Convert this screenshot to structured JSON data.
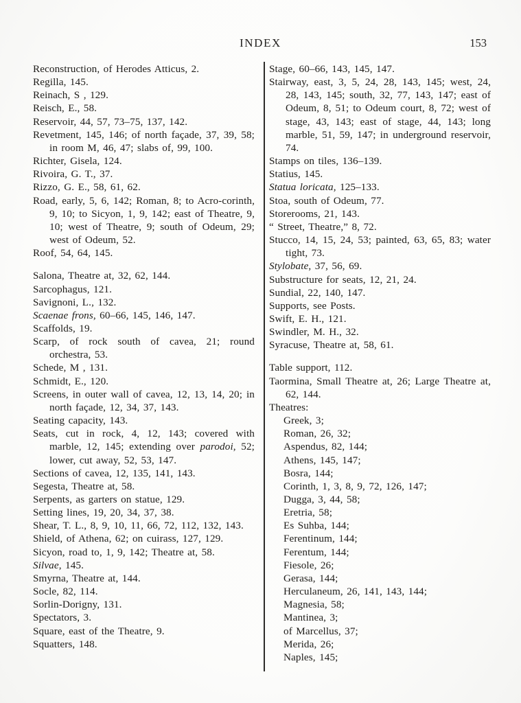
{
  "header": {
    "title": "INDEX",
    "page_number": "153"
  },
  "colors": {
    "paper": "#fbfbf9",
    "ink": "#1e1c19",
    "rule": "#2b2a28"
  },
  "columns": {
    "left": [
      {
        "type": "entry",
        "runs": [
          {
            "t": "Reconstruction, of Herodes Atticus, 2."
          }
        ]
      },
      {
        "type": "entry",
        "runs": [
          {
            "t": "Regilla, 145."
          }
        ]
      },
      {
        "type": "entry",
        "runs": [
          {
            "t": "Reinach, S , 129."
          }
        ]
      },
      {
        "type": "entry",
        "runs": [
          {
            "t": "Reisch, E., 58."
          }
        ]
      },
      {
        "type": "entry",
        "runs": [
          {
            "t": "Reservoir, 44, 57, 73–75, 137, 142."
          }
        ]
      },
      {
        "type": "entry",
        "runs": [
          {
            "t": "Revetment, 145, 146; of north façade, 37, 39, 58; in room M, 46, 47; slabs of, 99, 100."
          }
        ]
      },
      {
        "type": "entry",
        "runs": [
          {
            "t": "Richter, Gisela, 124."
          }
        ]
      },
      {
        "type": "entry",
        "runs": [
          {
            "t": "Rivoira, G. T., 37."
          }
        ]
      },
      {
        "type": "entry",
        "runs": [
          {
            "t": "Rizzo, G. E., 58, 61, 62."
          }
        ]
      },
      {
        "type": "entry",
        "runs": [
          {
            "t": "Road, early, 5, 6, 142; Roman, 8; to Acro-corinth, 9, 10; to Sicyon, 1, 9, 142; east of Theatre, 9, 10; west of Theatre, 9; south of Odeum, 29; west of Odeum, 52."
          }
        ]
      },
      {
        "type": "entry",
        "runs": [
          {
            "t": "Roof, 54, 64, 145."
          }
        ]
      },
      {
        "type": "gap"
      },
      {
        "type": "entry",
        "runs": [
          {
            "t": "Salona, Theatre at, 32, 62, 144."
          }
        ]
      },
      {
        "type": "entry",
        "runs": [
          {
            "t": "Sarcophagus, 121."
          }
        ]
      },
      {
        "type": "entry",
        "runs": [
          {
            "t": "Savignoni, L., 132."
          }
        ]
      },
      {
        "type": "entry",
        "runs": [
          {
            "t": "Scaenae frons",
            "i": true
          },
          {
            "t": ", 60–66, 145, 146, 147."
          }
        ]
      },
      {
        "type": "entry",
        "runs": [
          {
            "t": "Scaffolds, 19."
          }
        ]
      },
      {
        "type": "entry",
        "runs": [
          {
            "t": "Scarp, of rock south of cavea, 21; round orchestra, 53."
          }
        ]
      },
      {
        "type": "entry",
        "runs": [
          {
            "t": "Schede, M , 131."
          }
        ]
      },
      {
        "type": "entry",
        "runs": [
          {
            "t": "Schmidt, E., 120."
          }
        ]
      },
      {
        "type": "entry",
        "runs": [
          {
            "t": "Screens, in outer wall of cavea, 12, 13, 14, 20; in north façade, 12, 34, 37, 143."
          }
        ]
      },
      {
        "type": "entry",
        "runs": [
          {
            "t": "Seating capacity, 143."
          }
        ]
      },
      {
        "type": "entry",
        "runs": [
          {
            "t": "Seats, cut in rock, 4, 12, 143; covered with marble, 12, 145; extending over "
          },
          {
            "t": "parodoi",
            "i": true
          },
          {
            "t": ", 52; lower, cut away, 52, 53, 147."
          }
        ]
      },
      {
        "type": "entry",
        "runs": [
          {
            "t": "Sections of cavea, 12, 135, 141, 143."
          }
        ]
      },
      {
        "type": "entry",
        "runs": [
          {
            "t": "Segesta, Theatre at, 58."
          }
        ]
      },
      {
        "type": "entry",
        "runs": [
          {
            "t": "Serpents, as garters on statue, 129."
          }
        ]
      },
      {
        "type": "entry",
        "runs": [
          {
            "t": "Setting lines, 19, 20, 34, 37, 38."
          }
        ]
      },
      {
        "type": "entry",
        "runs": [
          {
            "t": "Shear, T. L., 8, 9, 10, 11, 66, 72, 112, 132, 143."
          }
        ]
      },
      {
        "type": "entry",
        "runs": [
          {
            "t": "Shield, of Athena, 62; on cuirass, 127, 129."
          }
        ]
      },
      {
        "type": "entry",
        "runs": [
          {
            "t": "Sicyon, road to, 1, 9, 142; Theatre at, 58."
          }
        ]
      },
      {
        "type": "entry",
        "runs": [
          {
            "t": "Silvae",
            "i": true
          },
          {
            "t": ", 145."
          }
        ]
      },
      {
        "type": "entry",
        "runs": [
          {
            "t": "Smyrna, Theatre at, 144."
          }
        ]
      },
      {
        "type": "entry",
        "runs": [
          {
            "t": "Socle, 82, 114."
          }
        ]
      },
      {
        "type": "entry",
        "runs": [
          {
            "t": "Sorlin-Dorigny, 131."
          }
        ]
      },
      {
        "type": "entry",
        "runs": [
          {
            "t": "Spectators, 3."
          }
        ]
      },
      {
        "type": "entry",
        "runs": [
          {
            "t": "Square, east of the Theatre, 9."
          }
        ]
      },
      {
        "type": "entry",
        "runs": [
          {
            "t": "Squatters, 148."
          }
        ]
      }
    ],
    "right": [
      {
        "type": "entry",
        "runs": [
          {
            "t": "Stage, 60–66, 143, 145, 147."
          }
        ]
      },
      {
        "type": "entry",
        "runs": [
          {
            "t": "Stairway, east, 3, 5, 24, 28, 143, 145; west, 24, 28, 143, 145; south, 32, 77, 143, 147; east of Odeum, 8, 51; to Odeum court, 8, 72; west of stage, 43, 143; east of stage, 44, 143; long marble, 51, 59, 147; in underground reservoir, 74."
          }
        ]
      },
      {
        "type": "entry",
        "runs": [
          {
            "t": "Stamps on tiles, 136–139."
          }
        ]
      },
      {
        "type": "entry",
        "runs": [
          {
            "t": "Statius, 145."
          }
        ]
      },
      {
        "type": "entry",
        "runs": [
          {
            "t": "Statua loricata",
            "i": true
          },
          {
            "t": ", 125–133."
          }
        ]
      },
      {
        "type": "entry",
        "runs": [
          {
            "t": "Stoa, south of Odeum, 77."
          }
        ]
      },
      {
        "type": "entry",
        "runs": [
          {
            "t": "Storerooms, 21, 143."
          }
        ]
      },
      {
        "type": "entry",
        "runs": [
          {
            "t": "“ Street, Theatre,” 8, 72."
          }
        ]
      },
      {
        "type": "entry",
        "runs": [
          {
            "t": "Stucco, 14, 15, 24, 53; painted, 63, 65, 83; water tight, 73."
          }
        ]
      },
      {
        "type": "entry",
        "runs": [
          {
            "t": "Stylobate",
            "i": true
          },
          {
            "t": ", 37, 56, 69."
          }
        ]
      },
      {
        "type": "entry",
        "runs": [
          {
            "t": "Substructure for seats, 12, 21, 24."
          }
        ]
      },
      {
        "type": "entry",
        "runs": [
          {
            "t": "Sundial, 22, 140, 147."
          }
        ]
      },
      {
        "type": "entry",
        "runs": [
          {
            "t": "Supports, see Posts."
          }
        ]
      },
      {
        "type": "entry",
        "runs": [
          {
            "t": "Swift, E. H., 121."
          }
        ]
      },
      {
        "type": "entry",
        "runs": [
          {
            "t": "Swindler, M. H., 32."
          }
        ]
      },
      {
        "type": "entry",
        "runs": [
          {
            "t": "Syracuse, Theatre at, 58, 61."
          }
        ]
      },
      {
        "type": "gap"
      },
      {
        "type": "entry",
        "runs": [
          {
            "t": "Table support, 112."
          }
        ]
      },
      {
        "type": "entry",
        "runs": [
          {
            "t": "Taormina, Small Theatre at, 26; Large Theatre at, 62, 144."
          }
        ]
      },
      {
        "type": "entry",
        "runs": [
          {
            "t": "Theatres:"
          }
        ]
      },
      {
        "type": "sub",
        "runs": [
          {
            "t": "Greek, 3;"
          }
        ]
      },
      {
        "type": "sub",
        "runs": [
          {
            "t": "Roman, 26, 32;"
          }
        ]
      },
      {
        "type": "sub",
        "runs": [
          {
            "t": "Aspendus, 82, 144;"
          }
        ]
      },
      {
        "type": "sub",
        "runs": [
          {
            "t": "Athens, 145, 147;"
          }
        ]
      },
      {
        "type": "sub",
        "runs": [
          {
            "t": "Bosra, 144;"
          }
        ]
      },
      {
        "type": "sub",
        "runs": [
          {
            "t": "Corinth, 1, 3, 8, 9, 72, 126, 147;"
          }
        ]
      },
      {
        "type": "sub",
        "runs": [
          {
            "t": "Dugga, 3, 44, 58;"
          }
        ]
      },
      {
        "type": "sub",
        "runs": [
          {
            "t": "Eretria, 58;"
          }
        ]
      },
      {
        "type": "sub",
        "runs": [
          {
            "t": "Es Suhba, 144;"
          }
        ]
      },
      {
        "type": "sub",
        "runs": [
          {
            "t": "Ferentinum, 144;"
          }
        ]
      },
      {
        "type": "sub",
        "runs": [
          {
            "t": "Ferentum, 144;"
          }
        ]
      },
      {
        "type": "sub",
        "runs": [
          {
            "t": "Fiesole, 26;"
          }
        ]
      },
      {
        "type": "sub",
        "runs": [
          {
            "t": "Gerasa, 144;"
          }
        ]
      },
      {
        "type": "sub",
        "runs": [
          {
            "t": "Herculaneum, 26, 141, 143, 144;"
          }
        ]
      },
      {
        "type": "sub",
        "runs": [
          {
            "t": "Magnesia, 58;"
          }
        ]
      },
      {
        "type": "sub",
        "runs": [
          {
            "t": "Mantinea, 3;"
          }
        ]
      },
      {
        "type": "sub",
        "runs": [
          {
            "t": "of Marcellus, 37;"
          }
        ]
      },
      {
        "type": "sub",
        "runs": [
          {
            "t": "Merida, 26;"
          }
        ]
      },
      {
        "type": "sub",
        "runs": [
          {
            "t": "Naples, 145;"
          }
        ]
      }
    ]
  }
}
